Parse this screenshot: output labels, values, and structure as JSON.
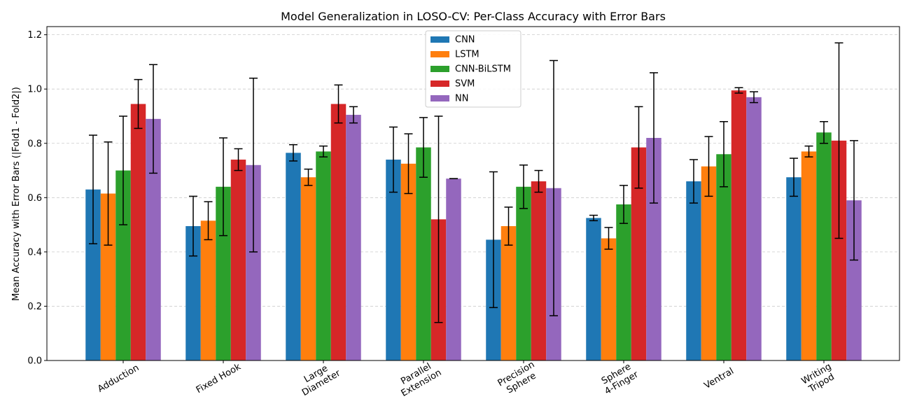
{
  "chart_data": {
    "type": "bar",
    "title": "Model Generalization in LOSO-CV: Per-Class Accuracy with Error Bars",
    "xlabel": "",
    "ylabel": "Mean Accuracy with Error Bars (|Fold1 - Fold2|)",
    "ylim": [
      0,
      1.23
    ],
    "yticks": [
      "0.0",
      "0.2",
      "0.4",
      "0.6",
      "0.8",
      "1.0",
      "1.2"
    ],
    "ytick_values": [
      0,
      0.2,
      0.4,
      0.6,
      0.8,
      1.0,
      1.2
    ],
    "grid": "y-dashed",
    "legend_position": "top-center",
    "categories": [
      [
        "Adduction"
      ],
      [
        "Fixed Hook"
      ],
      [
        "Large",
        "Diameter"
      ],
      [
        "Parallel",
        "Extension"
      ],
      [
        "Precision",
        "Sphere"
      ],
      [
        "Sphere",
        "4-Finger"
      ],
      [
        "Ventral"
      ],
      [
        "Writing",
        "Tripod"
      ]
    ],
    "series": [
      {
        "name": "CNN",
        "color": "#1f77b4",
        "values": [
          0.63,
          0.495,
          0.765,
          0.74,
          0.445,
          0.525,
          0.66,
          0.675
        ],
        "errors": [
          0.2,
          0.11,
          0.03,
          0.12,
          0.25,
          0.01,
          0.08,
          0.07
        ]
      },
      {
        "name": "LSTM",
        "color": "#ff7f0e",
        "values": [
          0.615,
          0.515,
          0.675,
          0.725,
          0.495,
          0.45,
          0.715,
          0.77
        ],
        "errors": [
          0.19,
          0.07,
          0.03,
          0.11,
          0.07,
          0.04,
          0.11,
          0.02
        ]
      },
      {
        "name": "CNN-BiLSTM",
        "color": "#2ca02c",
        "values": [
          0.7,
          0.64,
          0.77,
          0.785,
          0.64,
          0.575,
          0.76,
          0.84
        ],
        "errors": [
          0.2,
          0.18,
          0.02,
          0.11,
          0.08,
          0.07,
          0.12,
          0.04
        ]
      },
      {
        "name": "SVM",
        "color": "#d62728",
        "values": [
          0.945,
          0.74,
          0.945,
          0.52,
          0.66,
          0.785,
          0.995,
          0.81
        ],
        "errors": [
          0.09,
          0.04,
          0.07,
          0.38,
          0.04,
          0.15,
          0.01,
          0.36
        ]
      },
      {
        "name": "NN",
        "color": "#9467bd",
        "values": [
          0.89,
          0.72,
          0.905,
          0.67,
          0.635,
          0.82,
          0.97,
          0.59
        ],
        "errors": [
          0.2,
          0.32,
          0.03,
          0.0,
          0.47,
          0.24,
          0.02,
          0.22
        ]
      }
    ]
  }
}
